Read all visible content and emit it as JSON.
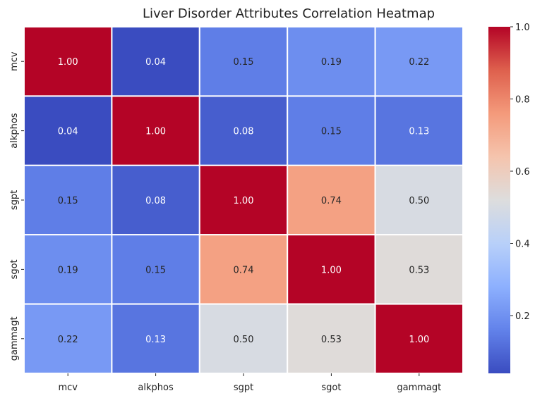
{
  "chart_data": {
    "type": "heatmap",
    "title": "Liver Disorder Attributes Correlation Heatmap",
    "xlabel": "",
    "ylabel": "",
    "x_categories": [
      "mcv",
      "alkphos",
      "sgpt",
      "sgot",
      "gammagt"
    ],
    "y_categories": [
      "mcv",
      "alkphos",
      "sgpt",
      "sgot",
      "gammagt"
    ],
    "values": [
      [
        1.0,
        0.04,
        0.15,
        0.19,
        0.22
      ],
      [
        0.04,
        1.0,
        0.08,
        0.15,
        0.13
      ],
      [
        0.15,
        0.08,
        1.0,
        0.74,
        0.5
      ],
      [
        0.19,
        0.15,
        0.74,
        1.0,
        0.53
      ],
      [
        0.22,
        0.13,
        0.5,
        0.53,
        1.0
      ]
    ],
    "value_labels": [
      [
        "1.00",
        "0.04",
        "0.15",
        "0.19",
        "0.22"
      ],
      [
        "0.04",
        "1.00",
        "0.08",
        "0.15",
        "0.13"
      ],
      [
        "0.15",
        "0.08",
        "1.00",
        "0.74",
        "0.50"
      ],
      [
        "0.19",
        "0.15",
        "0.74",
        "1.00",
        "0.53"
      ],
      [
        "0.22",
        "0.13",
        "0.50",
        "0.53",
        "1.00"
      ]
    ],
    "colormap": "coolwarm",
    "colorbar": {
      "range": [
        0.04,
        1.0
      ],
      "ticks": [
        0.2,
        0.4,
        0.6,
        0.8,
        1.0
      ],
      "tick_labels": [
        "0.2",
        "0.4",
        "0.6",
        "0.8",
        "1.0"
      ]
    },
    "grid_line_color": "#ffffff",
    "legend": "colorbar-right"
  }
}
